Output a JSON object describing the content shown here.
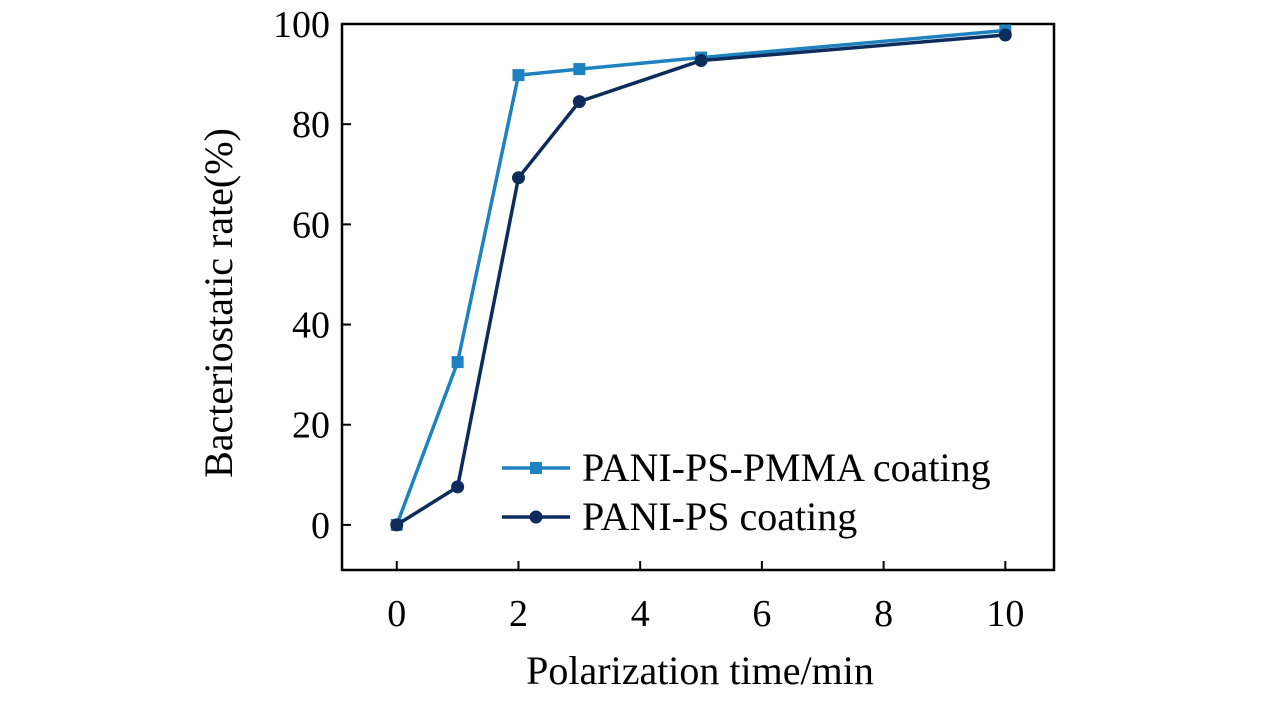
{
  "chart_data": {
    "type": "line",
    "xlabel": "Polarization time/min",
    "ylabel": "Bacteriostatic rate(%)",
    "xlim": [
      -0.9,
      10.8
    ],
    "ylim": [
      -9,
      100
    ],
    "x_ticks": [
      0,
      2,
      4,
      6,
      8,
      10
    ],
    "y_ticks": [
      0,
      20,
      40,
      60,
      80,
      100
    ],
    "x_tick_labels": [
      "0",
      "2",
      "4",
      "6",
      "8",
      "10"
    ],
    "y_tick_labels": [
      "0",
      "20",
      "40",
      "60",
      "80",
      "100"
    ],
    "legend_position": "bottom-right",
    "series": [
      {
        "name": "PANI-PS-PMMA coating",
        "color": "#1f82c0",
        "marker": "square",
        "x": [
          0,
          1,
          2,
          3,
          5,
          10
        ],
        "values": [
          0,
          32.5,
          89.8,
          91.0,
          93.3,
          98.7
        ]
      },
      {
        "name": "PANI-PS coating",
        "color": "#0d2b5b",
        "marker": "circle",
        "x": [
          0,
          1,
          2,
          3,
          5,
          10
        ],
        "values": [
          0,
          7.6,
          69.3,
          84.5,
          92.7,
          97.8
        ]
      }
    ]
  }
}
